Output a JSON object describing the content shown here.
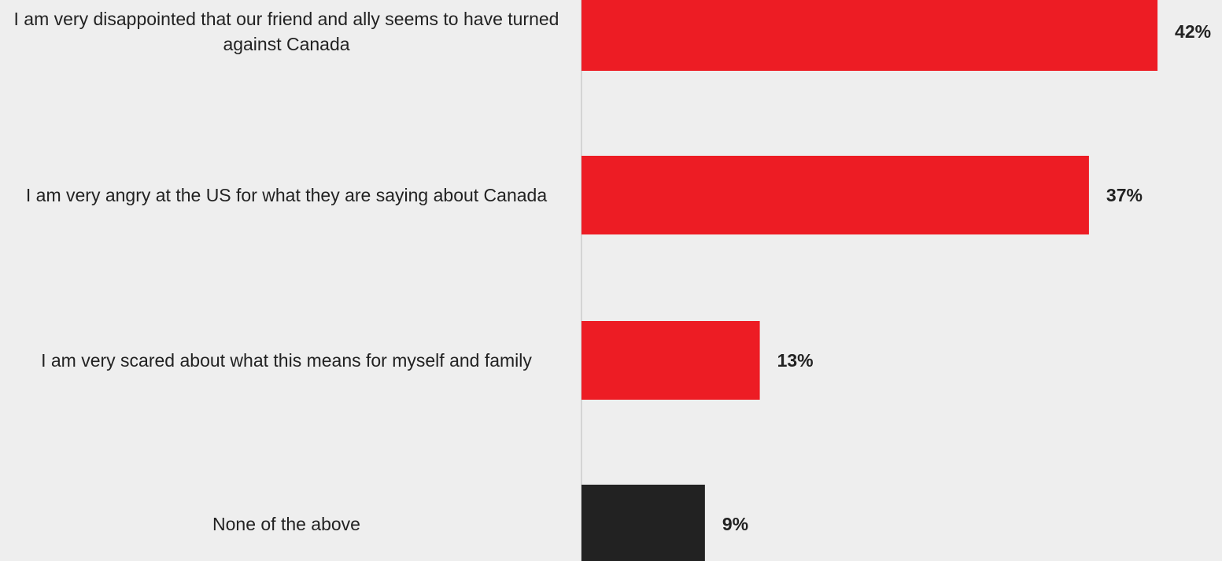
{
  "chart_data": {
    "type": "bar",
    "orientation": "horizontal",
    "categories": [
      "I am very disappointed that our friend and ally seems to have turned against Canada",
      "I am very angry at the US for what they are saying about Canada",
      "I am very scared about what this means for myself and family",
      "None of the above"
    ],
    "values": [
      42,
      37,
      13,
      9
    ],
    "value_labels": [
      "42%",
      "37%",
      "13%",
      "9%"
    ],
    "bar_colors": [
      "#ed1c24",
      "#ed1c24",
      "#ed1c24",
      "#222222"
    ],
    "title": "",
    "xlabel": "",
    "ylabel": "",
    "xlim": [
      0,
      42
    ],
    "grid": false,
    "legend": "none"
  }
}
